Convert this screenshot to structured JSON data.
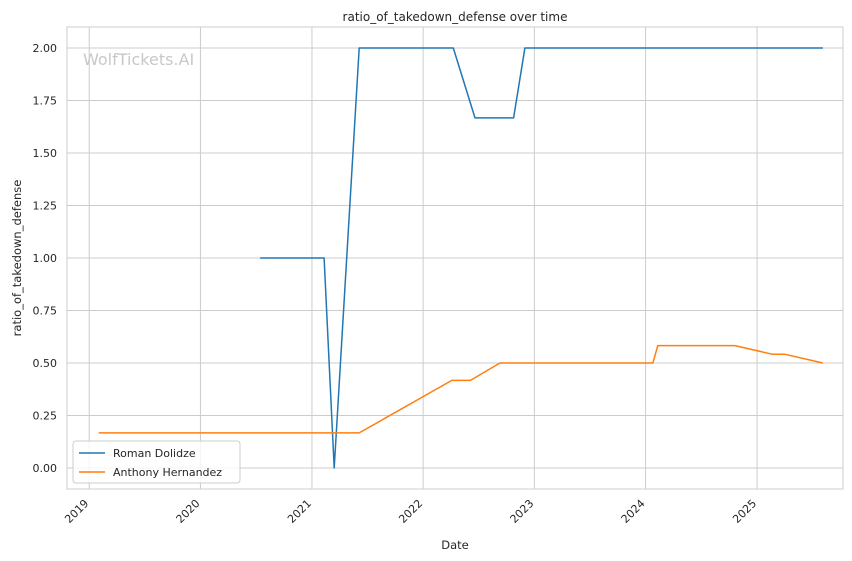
{
  "chart_data": {
    "type": "line",
    "title": "ratio_of_takedown_defense over time",
    "xlabel": "Date",
    "ylabel": "ratio_of_takedown_defense",
    "watermark": "WolfTickets.AI",
    "grid": true,
    "legend_position": "lower-left",
    "xlim": [
      "2018-10-20",
      "2025-10-10"
    ],
    "ylim": [
      -0.1,
      2.1
    ],
    "x_ticks": [
      {
        "date": "2019-01-01",
        "label": "2019"
      },
      {
        "date": "2020-01-01",
        "label": "2020"
      },
      {
        "date": "2021-01-01",
        "label": "2021"
      },
      {
        "date": "2022-01-01",
        "label": "2022"
      },
      {
        "date": "2023-01-01",
        "label": "2023"
      },
      {
        "date": "2024-01-01",
        "label": "2024"
      },
      {
        "date": "2025-01-01",
        "label": "2025"
      }
    ],
    "y_ticks": [
      {
        "value": 0.0,
        "label": "0.00"
      },
      {
        "value": 0.25,
        "label": "0.25"
      },
      {
        "value": 0.5,
        "label": "0.50"
      },
      {
        "value": 0.75,
        "label": "0.75"
      },
      {
        "value": 1.0,
        "label": "1.00"
      },
      {
        "value": 1.25,
        "label": "1.25"
      },
      {
        "value": 1.5,
        "label": "1.50"
      },
      {
        "value": 1.75,
        "label": "1.75"
      },
      {
        "value": 2.0,
        "label": "2.00"
      }
    ],
    "series": [
      {
        "name": "Roman Dolidze",
        "color": "#1f77b4",
        "points": [
          {
            "x": "2020-07-15",
            "y": 1.0
          },
          {
            "x": "2021-02-10",
            "y": 1.0
          },
          {
            "x": "2021-03-15",
            "y": 0.0
          },
          {
            "x": "2021-06-05",
            "y": 2.0
          },
          {
            "x": "2022-04-10",
            "y": 2.0
          },
          {
            "x": "2022-06-20",
            "y": 1.667
          },
          {
            "x": "2022-10-25",
            "y": 1.667
          },
          {
            "x": "2022-12-01",
            "y": 2.0
          },
          {
            "x": "2025-08-05",
            "y": 2.0
          }
        ]
      },
      {
        "name": "Anthony Hernandez",
        "color": "#ff7f0e",
        "points": [
          {
            "x": "2019-02-01",
            "y": 0.167
          },
          {
            "x": "2021-06-05",
            "y": 0.167
          },
          {
            "x": "2022-04-05",
            "y": 0.417
          },
          {
            "x": "2022-06-05",
            "y": 0.417
          },
          {
            "x": "2022-09-10",
            "y": 0.5
          },
          {
            "x": "2024-01-25",
            "y": 0.5
          },
          {
            "x": "2024-02-10",
            "y": 0.583
          },
          {
            "x": "2024-10-20",
            "y": 0.583
          },
          {
            "x": "2025-02-20",
            "y": 0.542
          },
          {
            "x": "2025-04-01",
            "y": 0.542
          },
          {
            "x": "2025-08-05",
            "y": 0.5
          }
        ]
      }
    ]
  }
}
